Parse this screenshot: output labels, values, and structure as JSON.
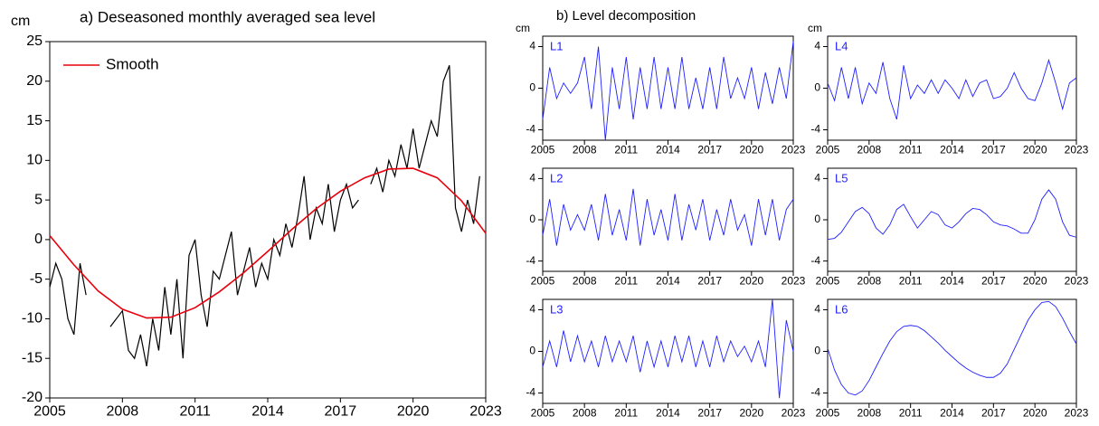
{
  "chart_data": [
    {
      "type": "line",
      "title": "a)  Deseasoned monthly averaged sea level",
      "ylabel": "cm",
      "xlim": [
        2005,
        2023
      ],
      "xticks": [
        2005,
        2008,
        2011,
        2014,
        2017,
        2020,
        2023
      ],
      "ylim": [
        -20,
        25
      ],
      "yticks": [
        -20,
        -15,
        -10,
        -5,
        0,
        5,
        10,
        15,
        20,
        25
      ],
      "grid": false,
      "legend": "upper left",
      "series": [
        {
          "color": "#000000",
          "x": [
            2005,
            2005.25,
            2005.5,
            2005.75,
            2006,
            2006.25,
            2006.5,
            2006.75,
            2007,
            2007.25,
            2007.5,
            2007.75,
            2008,
            2008.25,
            2008.5,
            2008.75,
            2009,
            2009.25,
            2009.5,
            2009.75,
            2010,
            2010.25,
            2010.5,
            2010.75,
            2011,
            2011.25,
            2011.5,
            2011.75,
            2012,
            2012.25,
            2012.5,
            2012.75,
            2013,
            2013.25,
            2013.5,
            2013.75,
            2014,
            2014.25,
            2014.5,
            2014.75,
            2015,
            2015.25,
            2015.5,
            2015.75,
            2016,
            2016.25,
            2016.5,
            2016.75,
            2017,
            2017.25,
            2017.5,
            2017.75,
            2018,
            2018.25,
            2018.5,
            2018.75,
            2019,
            2019.25,
            2019.5,
            2019.75,
            2020,
            2020.25,
            2020.5,
            2020.75,
            2021,
            2021.25,
            2021.5,
            2021.75,
            2022,
            2022.25,
            2022.5,
            2022.75
          ],
          "values": [
            -6,
            -3,
            -5,
            -10,
            -12,
            -3,
            -7,
            null,
            null,
            null,
            -11,
            -10,
            -9,
            -14,
            -15,
            -12,
            -16,
            -10,
            -14,
            -6,
            -12,
            -5,
            -15,
            -2,
            0,
            -7,
            -11,
            -4,
            -5,
            -2,
            1,
            -7,
            -4,
            -1,
            -6,
            -3,
            -5,
            0,
            -2,
            2,
            -1,
            3,
            8,
            0,
            4,
            2,
            7,
            1,
            5,
            7,
            4,
            5,
            null,
            7,
            9,
            6,
            10,
            8,
            12,
            9,
            14,
            9,
            12,
            15,
            13,
            20,
            22,
            4,
            1,
            5,
            2,
            8
          ]
        },
        {
          "name": "Smooth",
          "color": "#e8000b",
          "x": [
            2005,
            2006,
            2007,
            2008,
            2009,
            2010,
            2011,
            2012,
            2013,
            2014,
            2015,
            2016,
            2017,
            2018,
            2019,
            2020,
            2021,
            2022,
            2023
          ],
          "values": [
            0.5,
            -3.2,
            -6.5,
            -8.8,
            -9.9,
            -9.8,
            -8.6,
            -6.6,
            -4.2,
            -1.5,
            1.3,
            3.9,
            6.1,
            7.8,
            8.9,
            9.0,
            7.8,
            4.9,
            0.8
          ]
        }
      ]
    },
    {
      "type": "line",
      "title": "b) Level decomposition",
      "ylabel": "cm",
      "label": "L1",
      "xlim": [
        2005,
        2023
      ],
      "xticks": [
        2005,
        2008,
        2011,
        2014,
        2017,
        2020,
        2023
      ],
      "ylim": [
        -5,
        5
      ],
      "yticks": [
        -4,
        0,
        4
      ],
      "series": [
        {
          "color": "#1f1fff",
          "x": [
            2005,
            2005.5,
            2006,
            2006.5,
            2007,
            2007.5,
            2008,
            2008.5,
            2009,
            2009.5,
            2010,
            2010.5,
            2011,
            2011.5,
            2012,
            2012.5,
            2013,
            2013.5,
            2014,
            2014.5,
            2015,
            2015.5,
            2016,
            2016.5,
            2017,
            2017.5,
            2018,
            2018.5,
            2019,
            2019.5,
            2020,
            2020.5,
            2021,
            2021.5,
            2022,
            2022.5,
            2023
          ],
          "values": [
            -3,
            2,
            -1,
            0.5,
            -0.5,
            0.5,
            3,
            -2,
            4,
            -5,
            2,
            -2,
            3,
            -3,
            2,
            -2,
            3,
            -2,
            2,
            -2,
            3,
            -2,
            1,
            -2,
            2,
            -2,
            3,
            -1,
            1,
            -1,
            2,
            -2,
            1.5,
            -1.5,
            2,
            -1,
            4.5
          ]
        }
      ]
    },
    {
      "type": "line",
      "label": "L2",
      "xlim": [
        2005,
        2023
      ],
      "xticks": [
        2005,
        2008,
        2011,
        2014,
        2017,
        2020,
        2023
      ],
      "ylim": [
        -5,
        5
      ],
      "yticks": [
        -4,
        0,
        4
      ],
      "series": [
        {
          "color": "#1f1fff",
          "x": [
            2005,
            2005.5,
            2006,
            2006.5,
            2007,
            2007.5,
            2008,
            2008.5,
            2009,
            2009.5,
            2010,
            2010.5,
            2011,
            2011.5,
            2012,
            2012.5,
            2013,
            2013.5,
            2014,
            2014.5,
            2015,
            2015.5,
            2016,
            2016.5,
            2017,
            2017.5,
            2018,
            2018.5,
            2019,
            2019.5,
            2020,
            2020.5,
            2021,
            2021.5,
            2022,
            2022.5,
            2023
          ],
          "values": [
            -1.5,
            2,
            -2.5,
            1.5,
            -1,
            0.5,
            -1,
            1.5,
            -2,
            2.5,
            -1.5,
            1,
            -2,
            3,
            -2.5,
            2,
            -1.5,
            1,
            -2,
            2.5,
            -2,
            1.5,
            -1,
            2,
            -2,
            1,
            -1.5,
            2,
            -1,
            0.5,
            -2.5,
            2,
            -1.5,
            2,
            -2,
            1,
            2
          ]
        }
      ]
    },
    {
      "type": "line",
      "label": "L3",
      "xlim": [
        2005,
        2023
      ],
      "xticks": [
        2005,
        2008,
        2011,
        2014,
        2017,
        2020,
        2023
      ],
      "ylim": [
        -5,
        5
      ],
      "yticks": [
        -4,
        0,
        4
      ],
      "series": [
        {
          "color": "#1f1fff",
          "x": [
            2005,
            2005.5,
            2006,
            2006.5,
            2007,
            2007.5,
            2008,
            2008.5,
            2009,
            2009.5,
            2010,
            2010.5,
            2011,
            2011.5,
            2012,
            2012.5,
            2013,
            2013.5,
            2014,
            2014.5,
            2015,
            2015.5,
            2016,
            2016.5,
            2017,
            2017.5,
            2018,
            2018.5,
            2019,
            2019.5,
            2020,
            2020.5,
            2021,
            2021.5,
            2022,
            2022.5,
            2023
          ],
          "values": [
            -1.5,
            1,
            -1.5,
            2,
            -1,
            1.5,
            -1,
            1,
            -1.5,
            1.5,
            -1,
            1,
            -1,
            1.5,
            -2,
            1,
            -1.5,
            1,
            -1.5,
            1.5,
            -1,
            1.5,
            -1.5,
            1,
            -1.5,
            1.5,
            -1,
            1,
            -0.5,
            0.5,
            -1,
            1,
            -1.5,
            5,
            -4.5,
            3,
            0
          ]
        }
      ]
    },
    {
      "type": "line",
      "ylabel": "cm",
      "label": "L4",
      "xlim": [
        2005,
        2023
      ],
      "xticks": [
        2005,
        2008,
        2011,
        2014,
        2017,
        2020,
        2023
      ],
      "ylim": [
        -5,
        5
      ],
      "yticks": [
        -4,
        0,
        4
      ],
      "series": [
        {
          "color": "#1f1fff",
          "x": [
            2005,
            2005.5,
            2006,
            2006.5,
            2007,
            2007.5,
            2008,
            2008.5,
            2009,
            2009.5,
            2010,
            2010.5,
            2011,
            2011.5,
            2012,
            2012.5,
            2013,
            2013.5,
            2014,
            2014.5,
            2015,
            2015.5,
            2016,
            2016.5,
            2017,
            2017.5,
            2018,
            2018.5,
            2019,
            2019.5,
            2020,
            2020.5,
            2021,
            2021.5,
            2022,
            2022.5,
            2023
          ],
          "values": [
            0.5,
            -1.2,
            2,
            -1,
            2,
            -1.5,
            0.5,
            -0.5,
            2.5,
            -1,
            -3,
            2.2,
            -1,
            0.3,
            -0.5,
            0.8,
            -0.5,
            0.8,
            0,
            -1,
            0.8,
            -0.8,
            0.5,
            0.8,
            -1,
            -0.8,
            0,
            1.5,
            0,
            -1,
            -1.2,
            0.5,
            2.7,
            0.5,
            -2,
            0.5,
            1
          ]
        }
      ]
    },
    {
      "type": "line",
      "label": "L5",
      "xlim": [
        2005,
        2023
      ],
      "xticks": [
        2005,
        2008,
        2011,
        2014,
        2017,
        2020,
        2023
      ],
      "ylim": [
        -5,
        5
      ],
      "yticks": [
        -4,
        0,
        4
      ],
      "series": [
        {
          "color": "#1f1fff",
          "x": [
            2005,
            2005.5,
            2006,
            2006.5,
            2007,
            2007.5,
            2008,
            2008.5,
            2009,
            2009.5,
            2010,
            2010.5,
            2011,
            2011.5,
            2012,
            2012.5,
            2013,
            2013.5,
            2014,
            2014.5,
            2015,
            2015.5,
            2016,
            2016.5,
            2017,
            2017.5,
            2018,
            2018.5,
            2019,
            2019.5,
            2020,
            2020.5,
            2021,
            2021.5,
            2022,
            2022.5,
            2023
          ],
          "values": [
            -1.9,
            -1.8,
            -1.2,
            -0.2,
            0.8,
            1.2,
            0.6,
            -0.8,
            -1.4,
            -0.5,
            1,
            1.5,
            0.3,
            -0.8,
            0,
            0.8,
            0.5,
            -0.5,
            -0.8,
            -0.2,
            0.6,
            1.1,
            1,
            0.5,
            -0.2,
            -0.5,
            -0.6,
            -0.9,
            -1.3,
            -1.3,
            0,
            2,
            2.9,
            2,
            -0.2,
            -1.5,
            -1.7
          ]
        }
      ]
    },
    {
      "type": "line",
      "label": "L6",
      "xlim": [
        2005,
        2023
      ],
      "xticks": [
        2005,
        2008,
        2011,
        2014,
        2017,
        2020,
        2023
      ],
      "ylim": [
        -5,
        5
      ],
      "yticks": [
        -4,
        0,
        4
      ],
      "series": [
        {
          "color": "#1f1fff",
          "x": [
            2005,
            2005.5,
            2006,
            2006.5,
            2007,
            2007.5,
            2008,
            2008.5,
            2009,
            2009.5,
            2010,
            2010.5,
            2011,
            2011.5,
            2012,
            2012.5,
            2013,
            2013.5,
            2014,
            2014.5,
            2015,
            2015.5,
            2016,
            2016.5,
            2017,
            2017.5,
            2018,
            2018.5,
            2019,
            2019.5,
            2020,
            2020.5,
            2021,
            2021.5,
            2022,
            2022.5,
            2023
          ],
          "values": [
            0.3,
            -1.8,
            -3.2,
            -4,
            -4.2,
            -3.8,
            -2.8,
            -1.5,
            -0.2,
            1,
            1.9,
            2.4,
            2.5,
            2.4,
            2,
            1.4,
            0.8,
            0.1,
            -0.5,
            -1.1,
            -1.6,
            -2,
            -2.3,
            -2.5,
            -2.5,
            -2.1,
            -1.2,
            0.2,
            1.6,
            3,
            4,
            4.7,
            4.8,
            4.3,
            3.2,
            1.9,
            0.7
          ]
        }
      ]
    }
  ]
}
